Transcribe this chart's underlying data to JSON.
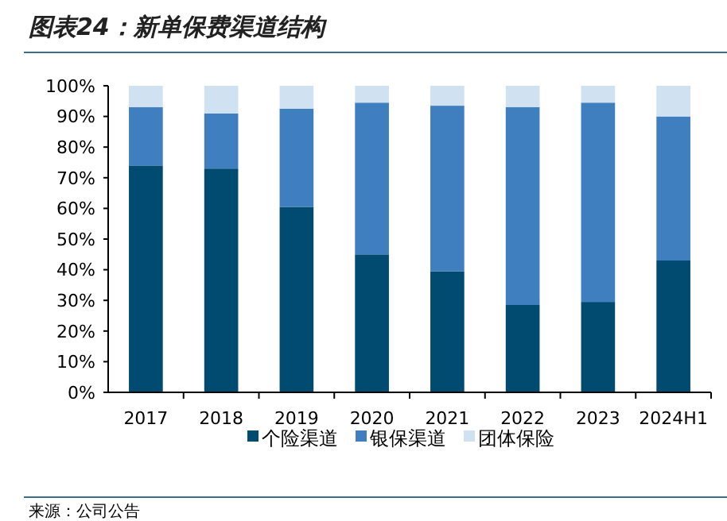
{
  "chart_data": {
    "type": "bar",
    "stacked": true,
    "title": "图表24：新单保费渠道结构",
    "categories": [
      "2017",
      "2018",
      "2019",
      "2020",
      "2021",
      "2022",
      "2023",
      "2024H1"
    ],
    "series": [
      {
        "name": "个险渠道",
        "color": "#014a70",
        "values": [
          74,
          73,
          60.5,
          45,
          39.5,
          28.5,
          29.5,
          43
        ]
      },
      {
        "name": "银保渠道",
        "color": "#3f7fbf",
        "values": [
          19,
          18,
          32,
          49.5,
          54,
          64.5,
          65,
          47
        ]
      },
      {
        "name": "团体保险",
        "color": "#d0e1f2",
        "values": [
          7,
          9,
          7.5,
          5.5,
          6.5,
          7,
          5.5,
          10
        ]
      }
    ],
    "ylim": [
      0,
      100
    ],
    "yticks": [
      {
        "value": 0,
        "label": "0%"
      },
      {
        "value": 10,
        "label": "10%"
      },
      {
        "value": 20,
        "label": "20%"
      },
      {
        "value": 30,
        "label": "30%"
      },
      {
        "value": 40,
        "label": "40%"
      },
      {
        "value": 50,
        "label": "50%"
      },
      {
        "value": 60,
        "label": "60%"
      },
      {
        "value": 70,
        "label": "70%"
      },
      {
        "value": 80,
        "label": "80%"
      },
      {
        "value": 90,
        "label": "90%"
      },
      {
        "value": 100,
        "label": "100%"
      }
    ],
    "legend": "bottom",
    "grid": false,
    "annotations": [
      "来源：公司公告"
    ]
  }
}
